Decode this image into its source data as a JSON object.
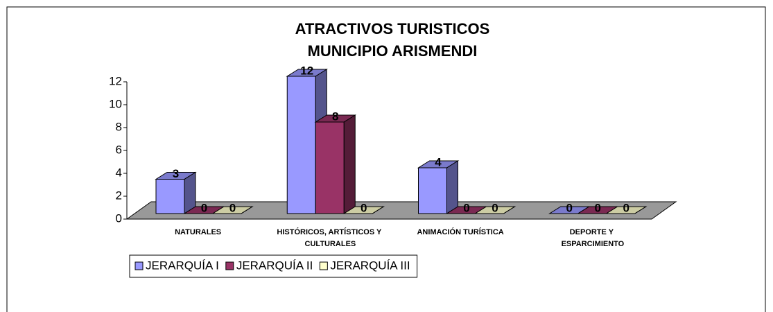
{
  "chart_data": {
    "type": "bar3d",
    "title": [
      "ATRACTIVOS TURISTICOS",
      "MUNICIPIO ARISMENDI"
    ],
    "categories": [
      "NATURALES",
      "HISTÓRICOS, ARTÍSTICOS Y CULTURALES",
      "ANIMACIÓN TURÍSTICA",
      "DEPORTE Y ESPARCIMIENTO"
    ],
    "series": [
      {
        "name": "JERARQUÍA I",
        "color": "#9999ff",
        "values": [
          3,
          12,
          4,
          0
        ]
      },
      {
        "name": "JERARQUÍA II",
        "color": "#993366",
        "values": [
          0,
          8,
          0,
          0
        ]
      },
      {
        "name": "JERARQUÍA III",
        "color": "#ffffcc",
        "values": [
          0,
          0,
          0,
          0
        ]
      }
    ],
    "ylim": [
      0,
      12
    ],
    "yticks": [
      0,
      2,
      4,
      6,
      8,
      10,
      12
    ],
    "legend": "bottom-left"
  }
}
